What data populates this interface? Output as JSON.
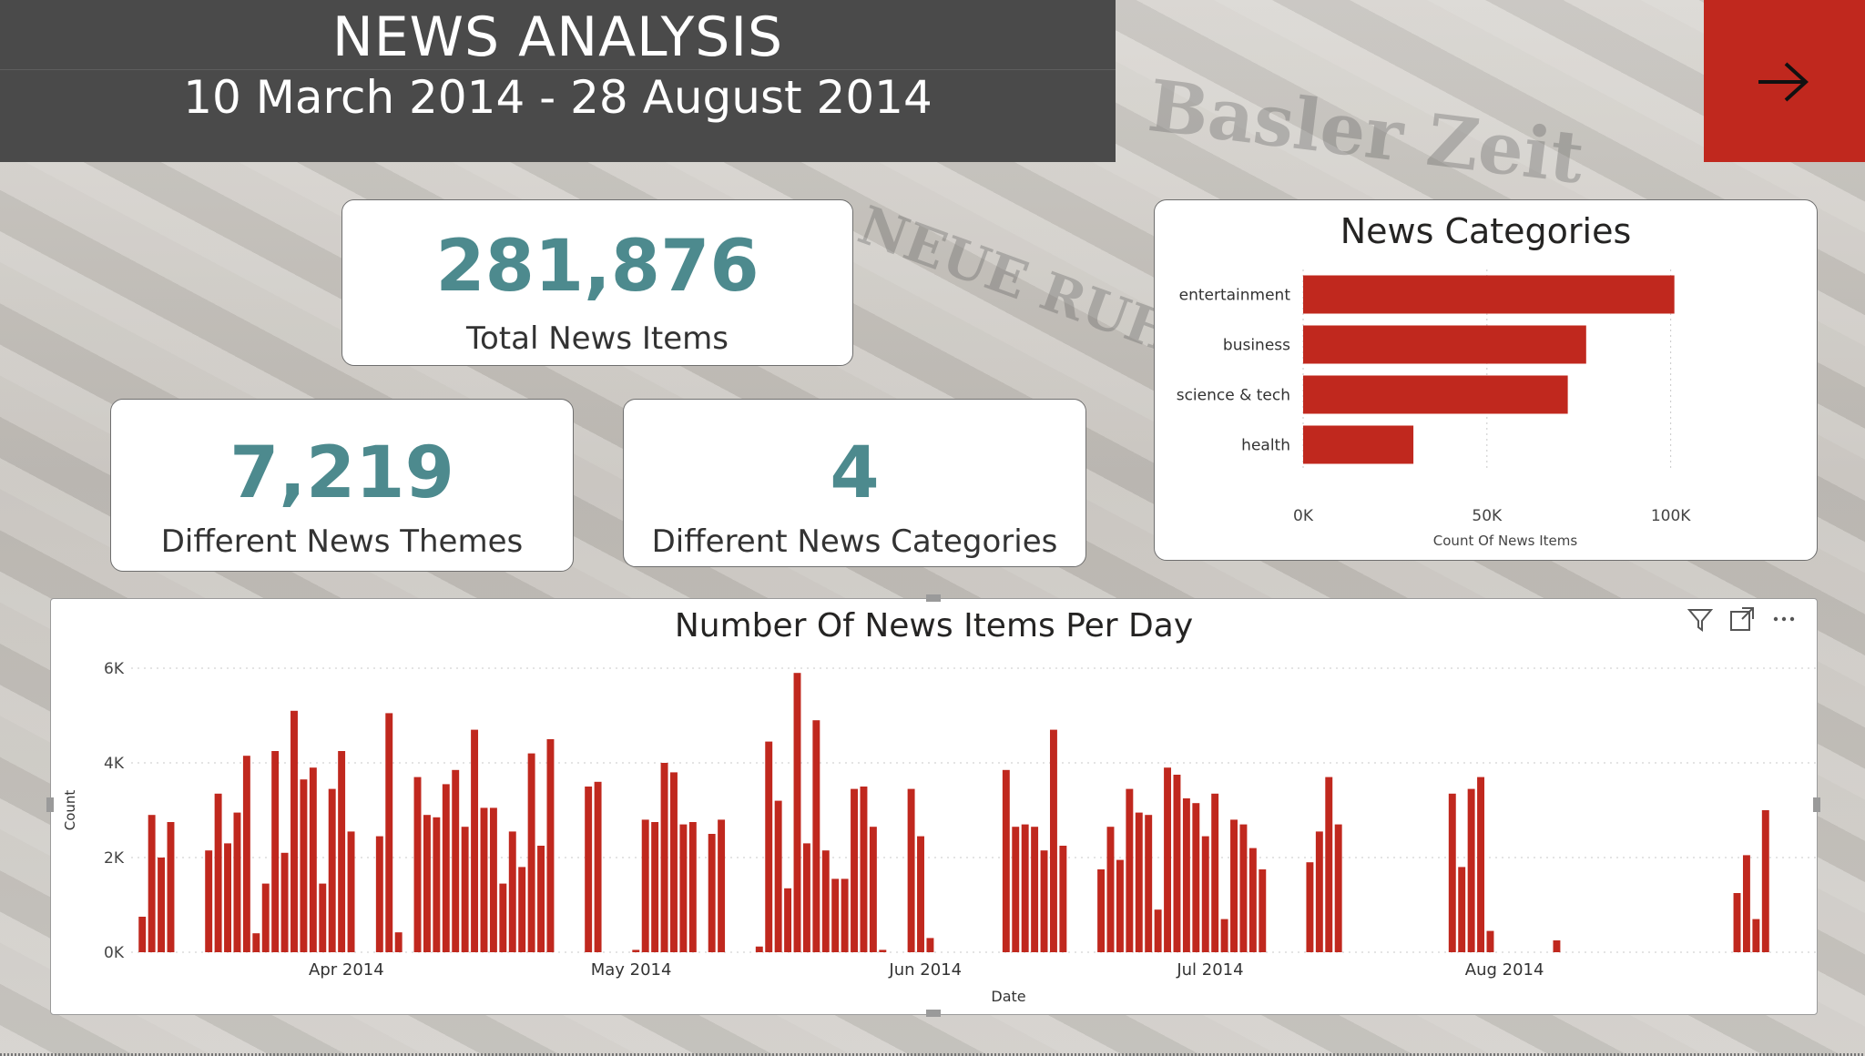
{
  "header": {
    "title": "NEWS ANALYSIS",
    "subtitle": "10 March 2014 - 28 August 2014"
  },
  "background_text": [
    "Basler Zeit",
    "NEUE RUHR ZE"
  ],
  "nav": {
    "next_icon": "arrow-right-icon",
    "accent": "#c0281e"
  },
  "kpis": {
    "total": {
      "value": "281,876",
      "label": "Total News Items"
    },
    "themes": {
      "value": "7,219",
      "label": "Different News Themes"
    },
    "categories": {
      "value": "4",
      "label": "Different News Categories"
    }
  },
  "colors": {
    "kpi": "#4d8a8e",
    "bar": "#c0281e",
    "header_bg": "#4a4a4a"
  },
  "visual_icons": [
    "filter-icon",
    "focus-mode-icon",
    "more-options-icon"
  ],
  "chart_data": [
    {
      "type": "bar",
      "orientation": "horizontal",
      "title": "News Categories",
      "categories": [
        "entertainment",
        "business",
        "science & tech",
        "health"
      ],
      "values": [
        101000,
        77000,
        72000,
        30000
      ],
      "xlabel": "Count Of News Items",
      "ylabel": "",
      "xlim": [
        0,
        110000
      ],
      "xticks": [
        0,
        50000,
        100000
      ],
      "xtick_labels": [
        "0K",
        "50K",
        "100K"
      ],
      "grid": true
    },
    {
      "type": "bar",
      "title": "Number Of News Items Per Day",
      "xlabel": "Date",
      "ylabel": "Count",
      "ylim": [
        0,
        6000
      ],
      "yticks": [
        0,
        2000,
        4000,
        6000
      ],
      "ytick_labels": [
        "0K",
        "2K",
        "4K",
        "6K"
      ],
      "x_range": [
        "2014-03-10",
        "2014-08-28"
      ],
      "month_ticks": [
        {
          "date": "2014-04-01",
          "label": "Apr 2014"
        },
        {
          "date": "2014-05-01",
          "label": "May 2014"
        },
        {
          "date": "2014-06-01",
          "label": "Jun 2014"
        },
        {
          "date": "2014-07-01",
          "label": "Jul 2014"
        },
        {
          "date": "2014-08-01",
          "label": "Aug 2014"
        }
      ],
      "grid": true,
      "series": [
        {
          "points": [
            [
              "2014-03-10",
              750
            ],
            [
              "2014-03-11",
              2900
            ],
            [
              "2014-03-12",
              2000
            ],
            [
              "2014-03-13",
              2750
            ],
            [
              "2014-03-17",
              2150
            ],
            [
              "2014-03-18",
              3350
            ],
            [
              "2014-03-19",
              2300
            ],
            [
              "2014-03-20",
              2950
            ],
            [
              "2014-03-21",
              4150
            ],
            [
              "2014-03-22",
              400
            ],
            [
              "2014-03-23",
              1450
            ],
            [
              "2014-03-24",
              4250
            ],
            [
              "2014-03-25",
              2100
            ],
            [
              "2014-03-26",
              5100
            ],
            [
              "2014-03-27",
              3650
            ],
            [
              "2014-03-28",
              3900
            ],
            [
              "2014-03-29",
              1450
            ],
            [
              "2014-03-30",
              3450
            ],
            [
              "2014-03-31",
              4250
            ],
            [
              "2014-04-01",
              2550
            ],
            [
              "2014-04-04",
              2450
            ],
            [
              "2014-04-05",
              5050
            ],
            [
              "2014-04-06",
              420
            ],
            [
              "2014-04-08",
              3700
            ],
            [
              "2014-04-09",
              2900
            ],
            [
              "2014-04-10",
              2850
            ],
            [
              "2014-04-11",
              3550
            ],
            [
              "2014-04-12",
              3850
            ],
            [
              "2014-04-13",
              2650
            ],
            [
              "2014-04-14",
              4700
            ],
            [
              "2014-04-15",
              3050
            ],
            [
              "2014-04-16",
              3050
            ],
            [
              "2014-04-17",
              1450
            ],
            [
              "2014-04-18",
              2550
            ],
            [
              "2014-04-19",
              1800
            ],
            [
              "2014-04-20",
              4200
            ],
            [
              "2014-04-21",
              2250
            ],
            [
              "2014-04-22",
              4500
            ],
            [
              "2014-04-26",
              3500
            ],
            [
              "2014-04-27",
              3600
            ],
            [
              "2014-05-01",
              50
            ],
            [
              "2014-05-02",
              2800
            ],
            [
              "2014-05-03",
              2750
            ],
            [
              "2014-05-04",
              4000
            ],
            [
              "2014-05-05",
              3800
            ],
            [
              "2014-05-06",
              2700
            ],
            [
              "2014-05-07",
              2750
            ],
            [
              "2014-05-09",
              2500
            ],
            [
              "2014-05-10",
              2800
            ],
            [
              "2014-05-14",
              120
            ],
            [
              "2014-05-15",
              4450
            ],
            [
              "2014-05-16",
              3200
            ],
            [
              "2014-05-17",
              1350
            ],
            [
              "2014-05-18",
              5900
            ],
            [
              "2014-05-19",
              2300
            ],
            [
              "2014-05-20",
              4900
            ],
            [
              "2014-05-21",
              2150
            ],
            [
              "2014-05-22",
              1550
            ],
            [
              "2014-05-23",
              1550
            ],
            [
              "2014-05-24",
              3450
            ],
            [
              "2014-05-25",
              3500
            ],
            [
              "2014-05-26",
              2650
            ],
            [
              "2014-05-27",
              50
            ],
            [
              "2014-05-30",
              3450
            ],
            [
              "2014-05-31",
              2450
            ],
            [
              "2014-06-01",
              300
            ],
            [
              "2014-06-09",
              3850
            ],
            [
              "2014-06-10",
              2650
            ],
            [
              "2014-06-11",
              2700
            ],
            [
              "2014-06-12",
              2650
            ],
            [
              "2014-06-13",
              2150
            ],
            [
              "2014-06-14",
              4700
            ],
            [
              "2014-06-15",
              2250
            ],
            [
              "2014-06-19",
              1750
            ],
            [
              "2014-06-20",
              2650
            ],
            [
              "2014-06-21",
              1950
            ],
            [
              "2014-06-22",
              3450
            ],
            [
              "2014-06-23",
              2950
            ],
            [
              "2014-06-24",
              2900
            ],
            [
              "2014-06-25",
              900
            ],
            [
              "2014-06-26",
              3900
            ],
            [
              "2014-06-27",
              3750
            ],
            [
              "2014-06-28",
              3250
            ],
            [
              "2014-06-29",
              3150
            ],
            [
              "2014-06-30",
              2450
            ],
            [
              "2014-07-01",
              3350
            ],
            [
              "2014-07-02",
              700
            ],
            [
              "2014-07-03",
              2800
            ],
            [
              "2014-07-04",
              2700
            ],
            [
              "2014-07-05",
              2200
            ],
            [
              "2014-07-06",
              1750
            ],
            [
              "2014-07-11",
              1900
            ],
            [
              "2014-07-12",
              2550
            ],
            [
              "2014-07-13",
              3700
            ],
            [
              "2014-07-14",
              2700
            ],
            [
              "2014-07-26",
              3350
            ],
            [
              "2014-07-27",
              1800
            ],
            [
              "2014-07-28",
              3450
            ],
            [
              "2014-07-29",
              3700
            ],
            [
              "2014-07-30",
              450
            ],
            [
              "2014-08-06",
              250
            ],
            [
              "2014-08-25",
              1250
            ],
            [
              "2014-08-26",
              2050
            ],
            [
              "2014-08-27",
              700
            ],
            [
              "2014-08-28",
              3000
            ]
          ]
        }
      ]
    }
  ]
}
